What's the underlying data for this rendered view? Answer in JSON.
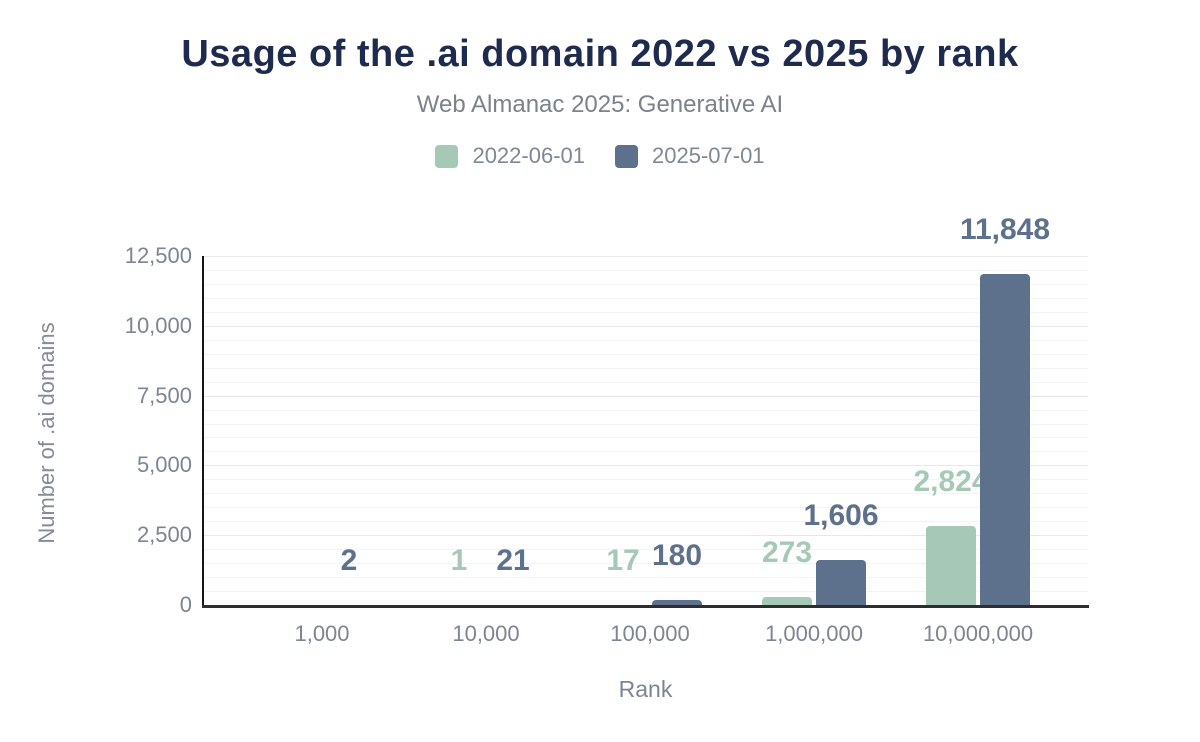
{
  "title": "Usage of the .ai domain 2022 vs 2025 by rank",
  "subtitle": "Web Almanac 2025: Generative AI",
  "colors": {
    "title": "#1f2b4e",
    "subtitle": "#7b828b",
    "legend_text": "#7f8894",
    "tick_text": "#7d8591",
    "axis_title_text": "#848b96",
    "series_2022": "#a6c9b7",
    "series_2025": "#5e718c",
    "grid_minor": "#f4f4f4",
    "grid_major": "#e8e8e8",
    "y_axis_line": "#161616",
    "x_axis_line": "#2e2e2e",
    "background": "#ffffff"
  },
  "chart_data": {
    "type": "bar",
    "title": "Usage of the .ai domain 2022 vs 2025 by rank",
    "subtitle": "Web Almanac 2025: Generative AI",
    "xlabel": "Rank",
    "ylabel": "Number of .ai domains",
    "categories": [
      "1,000",
      "10,000",
      "100,000",
      "1,000,000",
      "10,000,000"
    ],
    "series": [
      {
        "name": "2022-06-01",
        "color": "#a6c9b7",
        "values": [
          0,
          1,
          17,
          273,
          2824
        ],
        "labels": [
          "",
          "1",
          "17",
          "273",
          "2,824"
        ]
      },
      {
        "name": "2025-07-01",
        "color": "#5e718c",
        "values": [
          2,
          21,
          180,
          1606,
          11848
        ],
        "labels": [
          "2",
          "21",
          "180",
          "1,606",
          "11,848"
        ]
      }
    ],
    "ylim": [
      0,
      12500
    ],
    "yticks": [
      {
        "v": 0,
        "label": "0"
      },
      {
        "v": 2500,
        "label": "2,500"
      },
      {
        "v": 5000,
        "label": "5,000"
      },
      {
        "v": 7500,
        "label": "7,500"
      },
      {
        "v": 10000,
        "label": "10,000"
      },
      {
        "v": 12500,
        "label": "12,500"
      }
    ],
    "ytick_step": 2500,
    "minor_grid_step": 500,
    "grid": true,
    "legend_position": "top"
  }
}
